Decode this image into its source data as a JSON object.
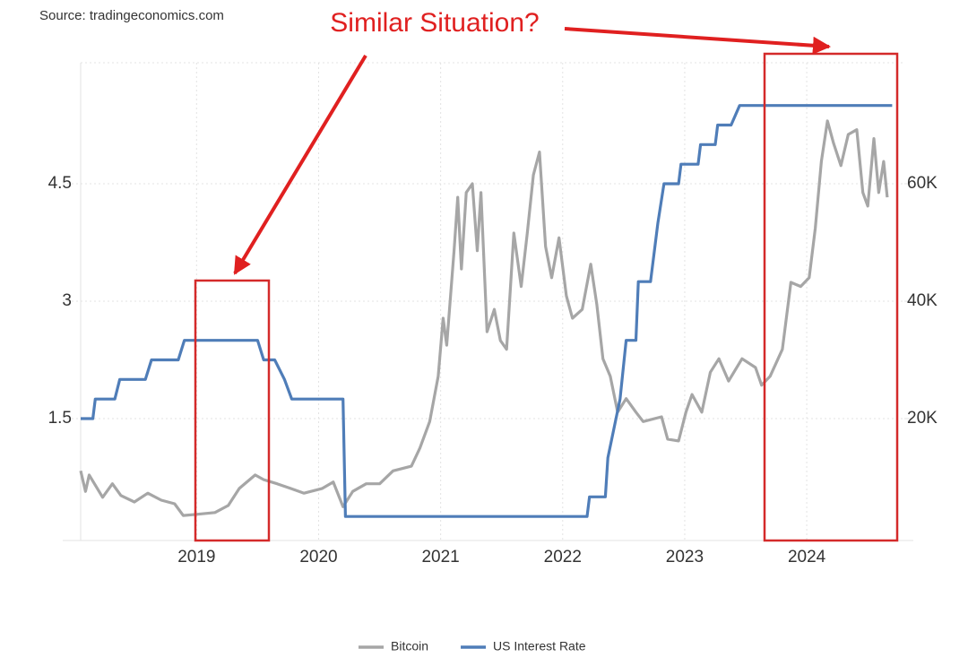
{
  "chart_data": {
    "type": "line",
    "source": "Source: tradingeconomics.com",
    "annotation": "Similar Situation?",
    "xlim": [
      2018.05,
      2024.8
    ],
    "xticks": [
      2019,
      2020,
      2021,
      2022,
      2023,
      2024
    ],
    "ylim": [
      0,
      6
    ],
    "yticks": [
      1.5,
      3,
      4.5
    ],
    "y2lim": [
      0,
      80000
    ],
    "y2ticks": [
      {
        "value": 20000,
        "label": "20K"
      },
      {
        "value": 40000,
        "label": "40K"
      },
      {
        "value": 60000,
        "label": "60K"
      }
    ],
    "grid": true,
    "legend": "bottom",
    "series": [
      {
        "name": "Bitcoin",
        "color": "#a6a6a6",
        "axis": "y2",
        "x": [
          2018.05,
          2018.09,
          2018.12,
          2018.23,
          2018.31,
          2018.38,
          2018.49,
          2018.6,
          2018.71,
          2018.82,
          2018.89,
          2019.0,
          2019.15,
          2019.26,
          2019.35,
          2019.48,
          2019.55,
          2019.66,
          2019.77,
          2019.88,
          2020.03,
          2020.12,
          2020.2,
          2020.28,
          2020.39,
          2020.5,
          2020.61,
          2020.76,
          2020.83,
          2020.91,
          2020.98,
          2021.02,
          2021.05,
          2021.11,
          2021.14,
          2021.17,
          2021.21,
          2021.26,
          2021.3,
          2021.33,
          2021.38,
          2021.44,
          2021.49,
          2021.54,
          2021.6,
          2021.66,
          2021.71,
          2021.76,
          2021.81,
          2021.86,
          2021.91,
          2021.97,
          2022.03,
          2022.08,
          2022.16,
          2022.23,
          2022.28,
          2022.33,
          2022.39,
          2022.45,
          2022.52,
          2022.6,
          2022.66,
          2022.81,
          2022.86,
          2022.95,
          2023.01,
          2023.06,
          2023.14,
          2023.21,
          2023.28,
          2023.36,
          2023.47,
          2023.58,
          2023.63,
          2023.7,
          2023.8,
          2023.87,
          2023.95,
          2024.02,
          2024.07,
          2024.12,
          2024.17,
          2024.22,
          2024.28,
          2024.34,
          2024.41,
          2024.46,
          2024.5,
          2024.55,
          2024.59,
          2024.63,
          2024.66
        ],
        "values": [
          11100,
          7600,
          10400,
          6600,
          8900,
          6900,
          5800,
          7300,
          6100,
          5500,
          3500,
          3700,
          4000,
          5200,
          8100,
          10400,
          9600,
          8900,
          8100,
          7300,
          8100,
          9200,
          5000,
          7600,
          8900,
          8900,
          11100,
          11900,
          15000,
          19500,
          27200,
          37100,
          32500,
          48600,
          57700,
          45500,
          58500,
          60000,
          48600,
          58500,
          34800,
          38600,
          33300,
          31800,
          51600,
          42500,
          51600,
          61500,
          65400,
          49300,
          44000,
          50800,
          40900,
          37100,
          38600,
          46300,
          39400,
          30200,
          27200,
          21100,
          23400,
          21100,
          19500,
          20300,
          16500,
          16200,
          21100,
          24100,
          21100,
          27900,
          30200,
          26400,
          30200,
          28700,
          25700,
          27200,
          31800,
          43200,
          42500,
          44000,
          52400,
          63800,
          70700,
          66900,
          63100,
          68400,
          69200,
          58500,
          56200,
          67700,
          58500,
          63800,
          57700
        ]
      },
      {
        "name": "US Interest Rate",
        "color": "#4f7db8",
        "x": [
          2018.05,
          2018.15,
          2018.17,
          2018.33,
          2018.37,
          2018.58,
          2018.63,
          2018.85,
          2018.9,
          2019.5,
          2019.55,
          2019.64,
          2019.72,
          2019.78,
          2020.2,
          2020.22,
          2022.2,
          2022.22,
          2022.35,
          2022.37,
          2022.47,
          2022.52,
          2022.6,
          2022.62,
          2022.72,
          2022.78,
          2022.83,
          2022.95,
          2022.97,
          2023.11,
          2023.13,
          2023.25,
          2023.27,
          2023.38,
          2023.45,
          2024.7
        ],
        "values": [
          1.5,
          1.5,
          1.75,
          1.75,
          2.0,
          2.0,
          2.25,
          2.25,
          2.5,
          2.5,
          2.25,
          2.25,
          2.0,
          1.75,
          1.75,
          0.25,
          0.25,
          0.5,
          0.5,
          1.0,
          1.75,
          2.5,
          2.5,
          3.25,
          3.25,
          4.0,
          4.5,
          4.5,
          4.75,
          4.75,
          5.0,
          5.0,
          5.25,
          5.25,
          5.5,
          5.5
        ]
      }
    ]
  }
}
